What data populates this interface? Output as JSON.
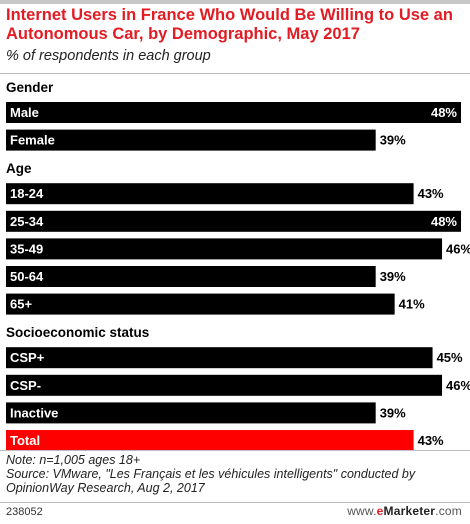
{
  "title": "Internet Users in France Who Would Be Willing to Use an Autonomous Car, by Demographic, May 2017",
  "subtitle": "% of respondents in each group",
  "note": "Note: n=1,005 ages 18+",
  "source": "Source: VMware, \"Les Français et les véhicules intelligents\" conducted by OpinionWay Research, Aug 2, 2017",
  "footer_id": "238052",
  "brand": {
    "prefix": "www.",
    "e": "e",
    "name": "Marketer",
    "suffix": ".com"
  },
  "colors": {
    "title": "#e31b23",
    "bar": "#000000",
    "total_bar": "#ff0000",
    "bar_label": "#ffffff"
  },
  "chart_data": {
    "type": "bar",
    "orientation": "horizontal",
    "unit": "%",
    "xlim": [
      0,
      48
    ],
    "groups": [
      {
        "name": "Gender",
        "categories": [
          "Male",
          "Female"
        ],
        "values": [
          48,
          39
        ]
      },
      {
        "name": "Age",
        "categories": [
          "18-24",
          "25-34",
          "35-49",
          "50-64",
          "65+"
        ],
        "values": [
          43,
          48,
          46,
          39,
          41
        ]
      },
      {
        "name": "Socioeconomic status",
        "categories": [
          "CSP+",
          "CSP-",
          "Inactive",
          "Total"
        ],
        "values": [
          45,
          46,
          39,
          43
        ],
        "highlight": "Total"
      }
    ]
  }
}
